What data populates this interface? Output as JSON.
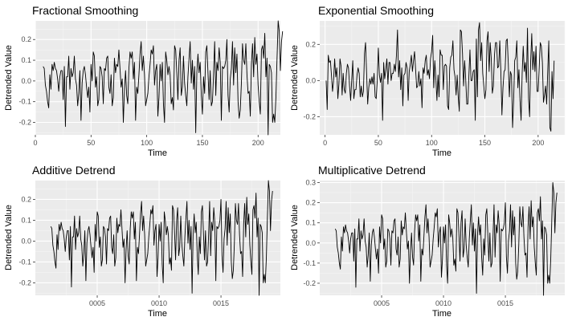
{
  "style": {
    "panel_background": "#ebebeb",
    "grid_major": "#ffffff",
    "grid_minor": "#f5f5f5",
    "line_color": "#000000",
    "tick_color": "#4d4d4d"
  },
  "chart_data": [
    {
      "type": "line",
      "title": "Fractional Smoothing",
      "xlabel": "Time",
      "ylabel": "Detrended Value",
      "x_axis_kind": "index",
      "xlim": [
        0,
        220
      ],
      "ylim": [
        -0.26,
        0.29
      ],
      "x_ticks": [
        0,
        50,
        100,
        150,
        200
      ],
      "x_tick_labels": [
        "0",
        "50",
        "100",
        "150",
        "200"
      ],
      "y_ticks": [
        -0.2,
        -0.1,
        0.0,
        0.1,
        0.2
      ],
      "y_tick_labels": [
        "-0.2",
        "-0.1",
        "0.0",
        "0.1",
        "0.2"
      ],
      "grid": true,
      "series": [
        {
          "x_start": 7,
          "x_step": 1,
          "values": [
            0.07,
            0.06,
            -0.02,
            -0.05,
            -0.1,
            -0.13,
            0.03,
            -0.04,
            0.08,
            0.05,
            0.09,
            0.06,
            0.05,
            0.01,
            -0.05,
            0.02,
            0.05,
            0.05,
            -0.09,
            0.07,
            -0.22,
            0.02,
            0.02,
            0.12,
            -0.04,
            0.06,
            0.02,
            0.04,
            0.12,
            0.01,
            -0.02,
            -0.12,
            -0.06,
            0.05,
            -0.19,
            -0.01,
            0.05,
            0.07,
            0.03,
            -0.03,
            -0.08,
            -0.03,
            -0.15,
            0.08,
            0.0,
            0.14,
            0.12,
            -0.03,
            0.02,
            -0.12,
            -0.09,
            0.07,
            0.06,
            0.02,
            -0.11,
            0.06,
            0.05,
            0.11,
            0.12,
            -0.03,
            -0.06,
            0.03,
            -0.12,
            -0.08,
            0.11,
            0.04,
            0.08,
            0.07,
            0.15,
            0.06,
            -0.03,
            0.01,
            -0.2,
            -0.04,
            0.05,
            -0.07,
            -0.11,
            0.06,
            0.14,
            0.11,
            0.14,
            0.01,
            0.09,
            -0.19,
            -0.03,
            -0.06,
            0.03,
            0.13,
            0.19,
            0.05,
            0.12,
            0.03,
            -0.12,
            -0.09,
            -0.06,
            0.02,
            0.08,
            0.15,
            0.13,
            0.17,
            -0.02,
            0.05,
            0.08,
            -0.17,
            -0.08,
            0.08,
            0.0,
            0.09,
            -0.11,
            -0.2,
            0.14,
            0.1,
            0.03,
            0.07,
            0.03,
            -0.11,
            -0.08,
            -0.14,
            0.17,
            0.15,
            0.04,
            -0.09,
            0.1,
            0.16,
            -0.07,
            -0.03,
            0.12,
            -0.01,
            -0.07,
            -0.12,
            0.02,
            0.11,
            0.19,
            -0.01,
            0.1,
            -0.04,
            0.07,
            -0.25,
            0.04,
            0.13,
            0.04,
            0.09,
            -0.07,
            -0.16,
            0.02,
            -0.06,
            0.14,
            0.17,
            0.04,
            -0.09,
            0.05,
            -0.12,
            -0.1,
            0.03,
            0.19,
            -0.07,
            0.09,
            0.05,
            0.16,
            0.09,
            -0.19,
            0.07,
            0.06,
            0.07,
            0.1,
            0.2,
            -0.07,
            -0.15,
            0.01,
            0.06,
            0.19,
            -0.02,
            0.16,
            0.04,
            0.13,
            -0.1,
            -0.18,
            -0.14,
            -0.01,
            0.18,
            0.1,
            0.08,
            0.18,
            0.03,
            -0.06,
            -0.05,
            -0.17,
            0.08,
            0.18,
            0.02,
            0.21,
            0.08,
            0.13,
            -0.02,
            -0.1,
            -0.16,
            0.15,
            0.17,
            0.11,
            0.23,
            0.02,
            0.11,
            -0.26,
            0.08,
            0.07,
            0.04,
            -0.2,
            -0.16,
            -0.2,
            -0.08,
            0.11,
            0.29,
            0.24,
            0.05,
            0.19,
            0.24
          ]
        }
      ]
    },
    {
      "type": "line",
      "title": "Exponential Smoothing",
      "xlabel": "Time",
      "ylabel": "Detrended Value",
      "x_axis_kind": "index",
      "xlim": [
        -5,
        225
      ],
      "ylim": [
        -0.3,
        0.33
      ],
      "x_ticks": [
        0,
        50,
        100,
        150,
        200
      ],
      "x_tick_labels": [
        "0",
        "50",
        "100",
        "150",
        "200"
      ],
      "y_ticks": [
        -0.2,
        0.0,
        0.2
      ],
      "y_tick_labels": [
        "-0.2",
        "0.0",
        "0.2"
      ],
      "grid": true,
      "series": [
        {
          "x_start": 1,
          "x_step": 1,
          "values": [
            0.0,
            -0.16,
            0.14,
            0.1,
            0.11,
            0.03,
            -0.06,
            0.0,
            0.12,
            0.02,
            0.07,
            -0.1,
            -0.02,
            0.12,
            0.08,
            -0.08,
            0.04,
            -0.05,
            -0.07,
            0.04,
            0.09,
            0.07,
            -0.03,
            -0.11,
            0.0,
            0.11,
            -0.1,
            -0.05,
            -0.05,
            0.03,
            0.07,
            0.04,
            -0.09,
            -0.03,
            -0.09,
            -0.06,
            0.15,
            0.21,
            0.04,
            -0.13,
            -0.04,
            0.01,
            -0.02,
            0.02,
            -0.02,
            0.04,
            -0.09,
            -0.1,
            0.0,
            0.18,
            0.03,
            -0.01,
            0.04,
            -0.22,
            0.1,
            0.01,
            0.06,
            0.12,
            -0.02,
            0.1,
            0.1,
            0.0,
            0.04,
            0.04,
            0.09,
            0.05,
            0.14,
            0.28,
            0.02,
            0.11,
            -0.05,
            0.07,
            -0.14,
            0.03,
            0.04,
            0.1,
            0.07,
            -0.11,
            0.05,
            0.09,
            0.14,
            0.05,
            0.11,
            0.16,
            0.06,
            -0.04,
            -0.03,
            0.05,
            -0.03,
            0.01,
            -0.15,
            0.07,
            0.04,
            0.11,
            0.14,
            0.03,
            0.06,
            0.01,
            0.12,
            0.16,
            0.25,
            -0.04,
            0.11,
            0.01,
            -0.11,
            0.03,
            -0.09,
            0.17,
            0.14,
            0.14,
            -0.05,
            0.08,
            0.09,
            0.08,
            -0.14,
            -0.16,
            0.07,
            0.13,
            0.14,
            0.22,
            0.06,
            0.02,
            -0.08,
            0.03,
            -0.09,
            -0.17,
            0.28,
            0.27,
            0.15,
            -0.03,
            0.11,
            0.01,
            -0.13,
            -0.13,
            0.03,
            0.17,
            0.0,
            0.0,
            0.05,
            0.06,
            -0.22,
            0.23,
            -0.09,
            0.28,
            0.32,
            0.11,
            0.21,
            0.04,
            -0.03,
            -0.1,
            -0.05,
            0.22,
            0.27,
            0.05,
            0.21,
            0.12,
            -0.07,
            -0.03,
            0.14,
            0.21,
            0.21,
            0.07,
            0.08,
            0.22,
            0.05,
            -0.19,
            -0.04,
            0.05,
            0.06,
            0.22,
            0.23,
            0.09,
            -0.09,
            0.05,
            0.03,
            -0.26,
            -0.11,
            0.11,
            0.13,
            0.22,
            -0.04,
            0.06,
            -0.11,
            -0.22,
            0.04,
            0.19,
            0.05,
            0.1,
            -0.01,
            0.29,
            -0.1,
            -0.2,
            0.11,
            0.26,
            0.06,
            0.16,
            0.05,
            0.19,
            -0.06,
            -0.06,
            0.07,
            0.21,
            0.19,
            0.1,
            -0.12,
            -0.08,
            -0.03,
            -0.13,
            0.05,
            0.22,
            -0.26,
            -0.28,
            0.05,
            -0.1,
            0.11
          ]
        }
      ]
    },
    {
      "type": "line",
      "title": "Additive Detrend",
      "xlabel": "Time",
      "ylabel": "Detrended Value",
      "x_axis_kind": "year",
      "xlim": [
        2000.0,
        2019.8
      ],
      "ylim": [
        -0.26,
        0.29
      ],
      "x_ticks": [
        2005,
        2010,
        2015
      ],
      "x_tick_labels": [
        "0005",
        "0010",
        "0015"
      ],
      "y_ticks": [
        -0.2,
        -0.1,
        0.0,
        0.1,
        0.2
      ],
      "y_tick_labels": [
        "-0.2",
        "-0.1",
        "0.0",
        "0.1",
        "0.2"
      ],
      "grid": true,
      "series": [
        {
          "x_start": 2001.25,
          "x_step": 0.083333,
          "values": [
            0.07,
            0.06,
            -0.02,
            -0.05,
            -0.1,
            -0.13,
            0.03,
            -0.04,
            0.08,
            0.05,
            0.09,
            0.06,
            0.05,
            0.01,
            -0.05,
            0.02,
            0.05,
            0.05,
            -0.09,
            0.07,
            -0.22,
            0.02,
            0.02,
            0.12,
            -0.04,
            0.06,
            0.02,
            0.04,
            0.12,
            0.01,
            -0.02,
            -0.12,
            -0.06,
            0.05,
            -0.19,
            -0.01,
            0.05,
            0.07,
            0.03,
            -0.03,
            -0.08,
            -0.03,
            -0.15,
            0.08,
            0.0,
            0.14,
            0.12,
            -0.03,
            0.02,
            -0.12,
            -0.09,
            0.07,
            0.06,
            0.02,
            -0.11,
            0.06,
            0.05,
            0.11,
            0.12,
            -0.03,
            -0.06,
            0.03,
            -0.12,
            -0.08,
            0.11,
            0.04,
            0.08,
            0.07,
            0.15,
            0.06,
            -0.03,
            0.01,
            -0.2,
            -0.04,
            0.05,
            -0.07,
            -0.11,
            0.06,
            0.14,
            0.11,
            0.14,
            0.01,
            0.09,
            -0.19,
            -0.03,
            -0.06,
            0.03,
            0.13,
            0.19,
            0.05,
            0.12,
            0.03,
            -0.12,
            -0.09,
            -0.06,
            0.02,
            0.08,
            0.15,
            0.13,
            0.17,
            -0.02,
            0.05,
            0.08,
            -0.17,
            -0.08,
            0.08,
            0.0,
            0.09,
            -0.11,
            -0.2,
            0.14,
            0.1,
            0.03,
            0.07,
            0.03,
            -0.11,
            -0.08,
            -0.14,
            0.17,
            0.15,
            0.04,
            -0.09,
            0.1,
            0.16,
            -0.07,
            -0.03,
            0.12,
            -0.01,
            -0.07,
            -0.12,
            0.02,
            0.11,
            0.19,
            -0.01,
            0.1,
            -0.04,
            0.07,
            -0.25,
            0.04,
            0.13,
            0.04,
            0.09,
            -0.07,
            -0.16,
            0.02,
            -0.06,
            0.14,
            0.17,
            0.04,
            -0.09,
            0.05,
            -0.12,
            -0.1,
            0.03,
            0.19,
            -0.07,
            0.09,
            0.05,
            0.16,
            0.09,
            -0.19,
            0.07,
            0.06,
            0.07,
            0.1,
            0.2,
            -0.07,
            -0.15,
            0.01,
            0.06,
            0.19,
            -0.02,
            0.16,
            0.04,
            0.13,
            -0.1,
            -0.18,
            -0.14,
            -0.01,
            0.18,
            0.1,
            0.08,
            0.18,
            0.03,
            -0.06,
            -0.05,
            -0.17,
            0.08,
            0.18,
            0.02,
            0.21,
            0.08,
            0.13,
            -0.02,
            -0.1,
            -0.16,
            0.15,
            0.17,
            0.11,
            0.23,
            0.02,
            0.11,
            -0.26,
            0.08,
            0.07,
            0.04,
            -0.2,
            -0.16,
            -0.2,
            -0.08,
            0.11,
            0.29,
            0.24,
            0.05,
            0.19,
            0.24
          ]
        }
      ]
    },
    {
      "type": "line",
      "title": "Multiplicative Detrend",
      "xlabel": "Time",
      "ylabel": "Detrended Value",
      "x_axis_kind": "year",
      "xlim": [
        2000.0,
        2019.8
      ],
      "ylim": [
        -0.26,
        0.31
      ],
      "x_ticks": [
        2005,
        2010,
        2015
      ],
      "x_tick_labels": [
        "0005",
        "0010",
        "0015"
      ],
      "y_ticks": [
        -0.2,
        -0.1,
        0.0,
        0.1,
        0.2,
        0.3
      ],
      "y_tick_labels": [
        "-0.2",
        "-0.1",
        "0.0",
        "0.1",
        "0.2",
        "0.3"
      ],
      "grid": true,
      "series": [
        {
          "x_start": 2001.25,
          "x_step": 0.083333,
          "values": [
            0.07,
            0.06,
            -0.02,
            -0.05,
            -0.1,
            -0.13,
            0.03,
            -0.04,
            0.08,
            0.05,
            0.09,
            0.06,
            0.05,
            0.01,
            -0.05,
            0.02,
            0.05,
            0.05,
            -0.09,
            0.07,
            -0.22,
            0.02,
            0.02,
            0.12,
            -0.04,
            0.06,
            0.02,
            0.04,
            0.12,
            0.01,
            -0.02,
            -0.12,
            -0.06,
            0.05,
            -0.19,
            -0.01,
            0.05,
            0.07,
            0.03,
            -0.03,
            -0.08,
            -0.03,
            -0.15,
            0.08,
            0.0,
            0.14,
            0.12,
            -0.03,
            0.02,
            -0.12,
            -0.09,
            0.07,
            0.06,
            0.02,
            -0.11,
            0.06,
            0.05,
            0.11,
            0.12,
            -0.03,
            -0.06,
            0.03,
            -0.12,
            -0.08,
            0.11,
            0.04,
            0.08,
            0.07,
            0.15,
            0.06,
            -0.03,
            0.01,
            -0.2,
            -0.04,
            0.05,
            -0.07,
            -0.11,
            0.06,
            0.14,
            0.11,
            0.14,
            0.01,
            0.09,
            -0.19,
            -0.03,
            -0.06,
            0.03,
            0.13,
            0.19,
            0.05,
            0.12,
            0.03,
            -0.12,
            -0.09,
            -0.06,
            0.02,
            0.08,
            0.15,
            0.13,
            0.17,
            -0.02,
            0.05,
            0.08,
            -0.17,
            -0.08,
            0.08,
            0.0,
            0.09,
            -0.11,
            -0.2,
            0.14,
            0.1,
            0.03,
            0.07,
            0.03,
            -0.11,
            -0.08,
            -0.14,
            0.17,
            0.15,
            0.04,
            -0.09,
            0.1,
            0.16,
            -0.07,
            -0.03,
            0.12,
            -0.01,
            -0.07,
            -0.12,
            0.02,
            0.11,
            0.19,
            -0.01,
            0.1,
            -0.04,
            0.07,
            -0.25,
            0.04,
            0.13,
            0.04,
            0.09,
            -0.07,
            -0.16,
            0.02,
            -0.06,
            0.14,
            0.17,
            0.04,
            -0.09,
            0.05,
            -0.12,
            -0.1,
            0.03,
            0.19,
            -0.07,
            0.09,
            0.05,
            0.16,
            0.09,
            -0.19,
            0.07,
            0.06,
            0.07,
            0.1,
            0.2,
            -0.07,
            -0.15,
            0.01,
            0.06,
            0.19,
            -0.02,
            0.16,
            0.04,
            0.13,
            -0.1,
            -0.18,
            -0.14,
            -0.01,
            0.18,
            0.1,
            0.08,
            0.18,
            0.03,
            -0.06,
            -0.05,
            -0.17,
            0.08,
            0.18,
            0.02,
            0.21,
            0.08,
            0.13,
            -0.02,
            -0.1,
            -0.16,
            0.15,
            0.17,
            0.11,
            0.23,
            0.02,
            0.11,
            -0.26,
            0.08,
            0.07,
            0.04,
            -0.2,
            -0.16,
            -0.2,
            -0.08,
            0.11,
            0.3,
            0.25,
            0.05,
            0.2,
            0.25
          ]
        }
      ]
    }
  ]
}
